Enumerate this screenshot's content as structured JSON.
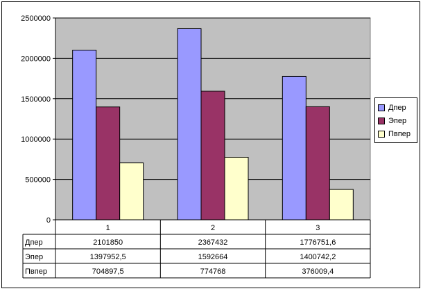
{
  "chart_data": {
    "type": "bar",
    "categories": [
      "1",
      "2",
      "3"
    ],
    "series": [
      {
        "name": "Дпер",
        "values": [
          2101850,
          2367432,
          1776751.6
        ],
        "labels": [
          "2101850",
          "2367432",
          "1776751,6"
        ],
        "color": "#9999FF"
      },
      {
        "name": "Эпер",
        "values": [
          1397952.5,
          1592664,
          1400742.2
        ],
        "labels": [
          "1397952,5",
          "1592664",
          "1400742,2"
        ],
        "color": "#993366"
      },
      {
        "name": "Пвпер",
        "values": [
          704897.5,
          774768,
          376009.4
        ],
        "labels": [
          "704897,5",
          "774768",
          "376009,4"
        ],
        "color": "#FFFFCC"
      }
    ],
    "yticks": [
      "0",
      "500000",
      "1000000",
      "1500000",
      "2000000",
      "2500000"
    ],
    "ylim": [
      0,
      2500000
    ],
    "grid": true,
    "legend": "right",
    "plot_background": "#C0C0C0"
  }
}
